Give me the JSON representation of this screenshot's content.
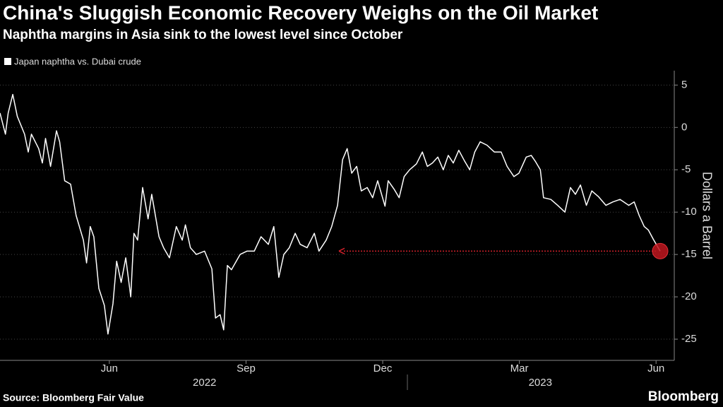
{
  "chart_data": {
    "type": "line",
    "title": "China's Sluggish Economic Recovery Weighs on the Oil Market",
    "subtitle": "Naphtha margins in Asia sink to the lowest level since October",
    "y_label": "Dollars a Barrel",
    "source": "Source: Bloomberg Fair Value",
    "brand": "Bloomberg",
    "xlim": [
      3.6,
      18.4
    ],
    "xticks": [
      {
        "value": 6,
        "label": "Jun"
      },
      {
        "value": 9,
        "label": "Sep"
      },
      {
        "value": 12,
        "label": "Dec"
      },
      {
        "value": 15,
        "label": "Mar"
      },
      {
        "value": 18,
        "label": "Jun"
      }
    ],
    "year_labels": [
      {
        "value": 8.09,
        "label": "2022"
      },
      {
        "value": 15.46,
        "label": "2023"
      }
    ],
    "ylim": [
      -27.5,
      6.7
    ],
    "yticks": [
      -25,
      -20,
      -15,
      -10,
      -5,
      0,
      5
    ],
    "grid": true,
    "x": [
      3.6,
      3.72,
      3.78,
      3.88,
      3.98,
      4.14,
      4.22,
      4.29,
      4.45,
      4.53,
      4.6,
      4.71,
      4.84,
      4.91,
      5.02,
      5.15,
      5.27,
      5.43,
      5.5,
      5.58,
      5.66,
      5.77,
      5.89,
      5.97,
      6.08,
      6.16,
      6.26,
      6.36,
      6.47,
      6.54,
      6.62,
      6.73,
      6.85,
      6.93,
      7.09,
      7.19,
      7.32,
      7.47,
      7.6,
      7.67,
      7.78,
      7.91,
      8.09,
      8.25,
      8.33,
      8.43,
      8.51,
      8.59,
      8.68,
      8.87,
      9.02,
      9.18,
      9.33,
      9.49,
      9.61,
      9.72,
      9.83,
      9.95,
      10.08,
      10.19,
      10.34,
      10.5,
      10.6,
      10.76,
      10.88,
      11.01,
      11.12,
      11.22,
      11.32,
      11.43,
      11.53,
      11.66,
      11.78,
      11.89,
      12.05,
      12.12,
      12.25,
      12.36,
      12.47,
      12.59,
      12.74,
      12.87,
      12.98,
      13.09,
      13.21,
      13.33,
      13.44,
      13.55,
      13.67,
      13.8,
      13.91,
      14.02,
      14.14,
      14.29,
      14.45,
      14.6,
      14.73,
      14.88,
      14.99,
      15.15,
      15.26,
      15.35,
      15.46,
      15.53,
      15.69,
      15.84,
      16.0,
      16.12,
      16.23,
      16.34,
      16.47,
      16.59,
      16.74,
      16.9,
      17.05,
      17.21,
      17.4,
      17.52,
      17.63,
      17.74,
      17.83,
      17.94,
      18.09
    ],
    "series": [
      {
        "name": "Japan naphtha vs. Dubai crude",
        "color": "#ffffff",
        "values": [
          1.7,
          -0.8,
          1.7,
          3.9,
          1.3,
          -0.8,
          -2.9,
          -0.8,
          -2.5,
          -4.2,
          -1.3,
          -4.6,
          -0.4,
          -1.7,
          -6.3,
          -6.7,
          -10.4,
          -13.3,
          -16,
          -11.7,
          -12.9,
          -19,
          -21,
          -24.4,
          -20.8,
          -15.8,
          -18.3,
          -15.4,
          -20,
          -12.5,
          -13.3,
          -7.1,
          -10.8,
          -7.9,
          -12.9,
          -14.2,
          -15.4,
          -11.7,
          -13.3,
          -11.5,
          -14.2,
          -15,
          -14.6,
          -16.7,
          -22.5,
          -22.1,
          -23.9,
          -16.3,
          -16.8,
          -15,
          -14.6,
          -14.6,
          -12.9,
          -13.8,
          -11.7,
          -17.7,
          -15,
          -14.2,
          -12.5,
          -13.8,
          -14.2,
          -12.5,
          -14.6,
          -13.3,
          -11.7,
          -9.2,
          -3.8,
          -2.5,
          -5.4,
          -4.6,
          -7.5,
          -7.1,
          -8.3,
          -6.3,
          -9.3,
          -6.3,
          -7.3,
          -8.3,
          -5.8,
          -5,
          -4.3,
          -2.9,
          -4.6,
          -4.2,
          -3.5,
          -5,
          -3.3,
          -4.2,
          -2.7,
          -4,
          -5,
          -2.9,
          -1.7,
          -2.1,
          -2.9,
          -2.9,
          -4.6,
          -5.8,
          -5.4,
          -3.5,
          -3.3,
          -4,
          -5,
          -8.3,
          -8.5,
          -9.2,
          -10,
          -7.1,
          -7.9,
          -6.8,
          -9.2,
          -7.5,
          -8.2,
          -9.2,
          -8.8,
          -8.5,
          -9.2,
          -8.8,
          -10.4,
          -11.7,
          -12.1,
          -13.2,
          -14.6
        ]
      }
    ]
  }
}
